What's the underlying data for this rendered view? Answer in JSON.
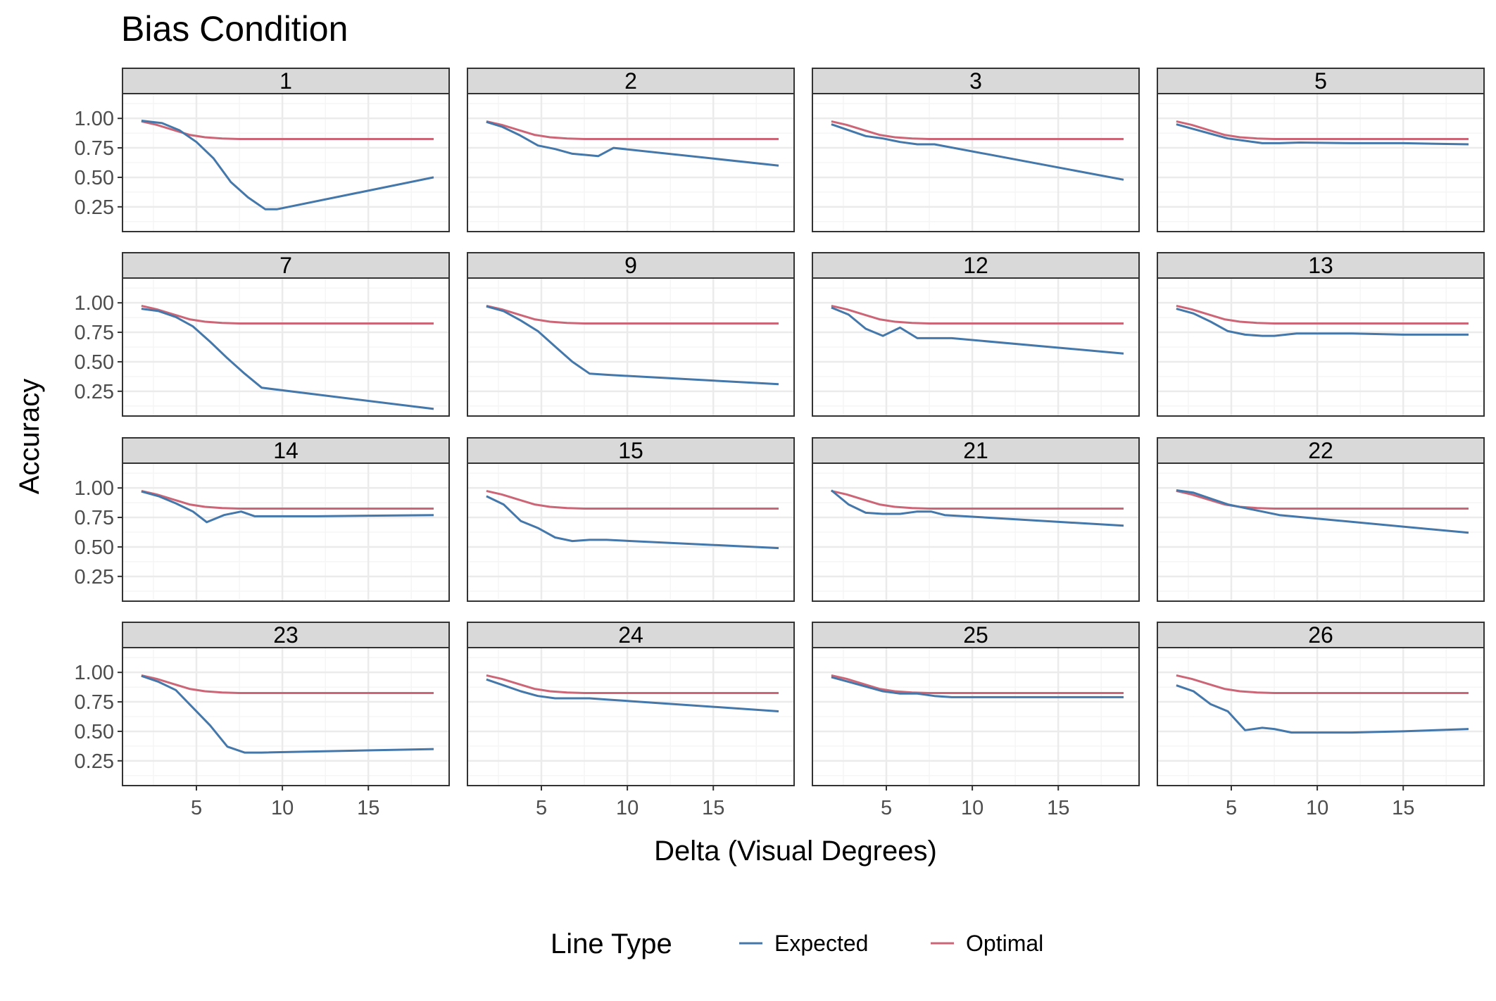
{
  "colors": {
    "expected": "#4477AA",
    "optimal": "#CC6677",
    "strip_bg": "#D9D9D9",
    "panel_border": "#333333",
    "grid_major": "#EBEBEB",
    "grid_minor": "#F5F5F5",
    "text": "#000000",
    "tick_text": "#4D4D4D"
  },
  "chart_data": {
    "type": "line",
    "title": "Bias Condition",
    "xlabel": "Delta (Visual Degrees)",
    "ylabel": "Accuracy",
    "xlim": [
      0.7,
      19.7
    ],
    "ylim": [
      0.04,
      1.21
    ],
    "x_ticks": [
      5,
      10,
      15
    ],
    "x_tick_labels": [
      "5",
      "10",
      "15"
    ],
    "y_ticks": [
      0.25,
      0.5,
      0.75,
      1.0
    ],
    "y_tick_labels": [
      "0.25",
      "0.50",
      "0.75",
      "1.00"
    ],
    "grid": true,
    "facet_layout": {
      "rows": 4,
      "cols": 4
    },
    "legend": {
      "title": "Line Type",
      "position": "bottom",
      "entries": [
        "Expected",
        "Optimal"
      ]
    },
    "optimal_curve": {
      "x": [
        1.8,
        2.7,
        3.7,
        4.6,
        5.5,
        6.5,
        7.5,
        8.5,
        9.5,
        12,
        15,
        18.8
      ],
      "y": [
        0.975,
        0.945,
        0.9,
        0.86,
        0.84,
        0.83,
        0.825,
        0.825,
        0.825,
        0.825,
        0.825,
        0.825
      ]
    },
    "panels": [
      {
        "label": "1",
        "expected": {
          "x": [
            1.8,
            3.0,
            4.0,
            5.0,
            6.0,
            7.0,
            8.0,
            9.0,
            9.7,
            18.8
          ],
          "y": [
            0.98,
            0.96,
            0.9,
            0.8,
            0.66,
            0.46,
            0.33,
            0.23,
            0.23,
            0.5
          ]
        }
      },
      {
        "label": "2",
        "expected": {
          "x": [
            1.8,
            2.7,
            3.7,
            4.8,
            5.8,
            6.8,
            7.6,
            8.3,
            9.2,
            18.8
          ],
          "y": [
            0.97,
            0.93,
            0.86,
            0.77,
            0.74,
            0.7,
            0.69,
            0.68,
            0.75,
            0.6
          ]
        }
      },
      {
        "label": "3",
        "expected": {
          "x": [
            1.8,
            2.8,
            3.8,
            4.8,
            5.8,
            6.8,
            7.8,
            18.8
          ],
          "y": [
            0.95,
            0.9,
            0.85,
            0.83,
            0.8,
            0.78,
            0.78,
            0.48
          ]
        }
      },
      {
        "label": "5",
        "expected": {
          "x": [
            1.8,
            2.8,
            3.8,
            4.8,
            5.8,
            6.8,
            7.8,
            9.0,
            12.0,
            15.0,
            18.8
          ],
          "y": [
            0.95,
            0.91,
            0.87,
            0.83,
            0.81,
            0.79,
            0.79,
            0.795,
            0.79,
            0.79,
            0.78
          ]
        }
      },
      {
        "label": "7",
        "expected": {
          "x": [
            1.8,
            2.8,
            3.8,
            4.8,
            5.8,
            6.8,
            7.8,
            8.8,
            18.8
          ],
          "y": [
            0.95,
            0.93,
            0.88,
            0.8,
            0.67,
            0.53,
            0.4,
            0.28,
            0.1
          ]
        }
      },
      {
        "label": "9",
        "expected": {
          "x": [
            1.8,
            2.8,
            3.8,
            4.8,
            5.8,
            6.8,
            7.8,
            8.8,
            18.8
          ],
          "y": [
            0.97,
            0.93,
            0.85,
            0.76,
            0.63,
            0.5,
            0.4,
            0.39,
            0.31
          ]
        }
      },
      {
        "label": "12",
        "expected": {
          "x": [
            1.8,
            2.8,
            3.8,
            4.8,
            5.8,
            6.8,
            7.5,
            8.8,
            18.8
          ],
          "y": [
            0.96,
            0.9,
            0.78,
            0.72,
            0.79,
            0.7,
            0.7,
            0.7,
            0.57
          ]
        }
      },
      {
        "label": "13",
        "expected": {
          "x": [
            1.8,
            2.8,
            3.8,
            4.8,
            5.8,
            6.8,
            7.5,
            8.8,
            12.0,
            15.0,
            18.8
          ],
          "y": [
            0.95,
            0.91,
            0.84,
            0.76,
            0.73,
            0.72,
            0.72,
            0.74,
            0.74,
            0.73,
            0.73
          ]
        }
      },
      {
        "label": "14",
        "expected": {
          "x": [
            1.8,
            2.8,
            3.8,
            4.8,
            5.6,
            6.6,
            7.6,
            8.4,
            12.0,
            18.8
          ],
          "y": [
            0.97,
            0.93,
            0.87,
            0.8,
            0.71,
            0.77,
            0.8,
            0.76,
            0.76,
            0.77
          ]
        }
      },
      {
        "label": "15",
        "expected": {
          "x": [
            1.8,
            2.8,
            3.8,
            4.8,
            5.8,
            6.8,
            7.8,
            8.8,
            18.8
          ],
          "y": [
            0.93,
            0.86,
            0.72,
            0.66,
            0.58,
            0.55,
            0.56,
            0.56,
            0.49
          ]
        }
      },
      {
        "label": "21",
        "expected": {
          "x": [
            1.8,
            2.8,
            3.8,
            4.8,
            5.8,
            6.8,
            7.6,
            8.4,
            18.8
          ],
          "y": [
            0.98,
            0.86,
            0.79,
            0.78,
            0.78,
            0.8,
            0.8,
            0.77,
            0.68
          ]
        }
      },
      {
        "label": "22",
        "expected": {
          "x": [
            1.8,
            2.8,
            3.8,
            4.8,
            5.8,
            6.8,
            7.8,
            18.8
          ],
          "y": [
            0.98,
            0.96,
            0.91,
            0.86,
            0.83,
            0.8,
            0.77,
            0.62
          ]
        }
      },
      {
        "label": "23",
        "expected": {
          "x": [
            1.8,
            2.8,
            3.8,
            4.8,
            5.8,
            6.8,
            7.8,
            8.8,
            18.8
          ],
          "y": [
            0.97,
            0.92,
            0.85,
            0.7,
            0.55,
            0.37,
            0.32,
            0.32,
            0.35
          ]
        }
      },
      {
        "label": "24",
        "expected": {
          "x": [
            1.8,
            2.8,
            3.8,
            4.8,
            5.8,
            6.8,
            7.8,
            8.8,
            18.8
          ],
          "y": [
            0.94,
            0.89,
            0.84,
            0.8,
            0.78,
            0.78,
            0.78,
            0.77,
            0.67
          ]
        }
      },
      {
        "label": "25",
        "expected": {
          "x": [
            1.8,
            2.8,
            3.8,
            4.8,
            5.8,
            6.8,
            7.8,
            8.8,
            12.0,
            15.0,
            18.8
          ],
          "y": [
            0.96,
            0.92,
            0.88,
            0.84,
            0.82,
            0.82,
            0.8,
            0.79,
            0.79,
            0.79,
            0.79
          ]
        }
      },
      {
        "label": "26",
        "expected": {
          "x": [
            1.8,
            2.8,
            3.8,
            4.8,
            5.8,
            6.8,
            7.5,
            8.5,
            12.0,
            15.0,
            18.8
          ],
          "y": [
            0.89,
            0.84,
            0.73,
            0.67,
            0.51,
            0.53,
            0.52,
            0.49,
            0.49,
            0.5,
            0.52
          ]
        }
      }
    ]
  }
}
